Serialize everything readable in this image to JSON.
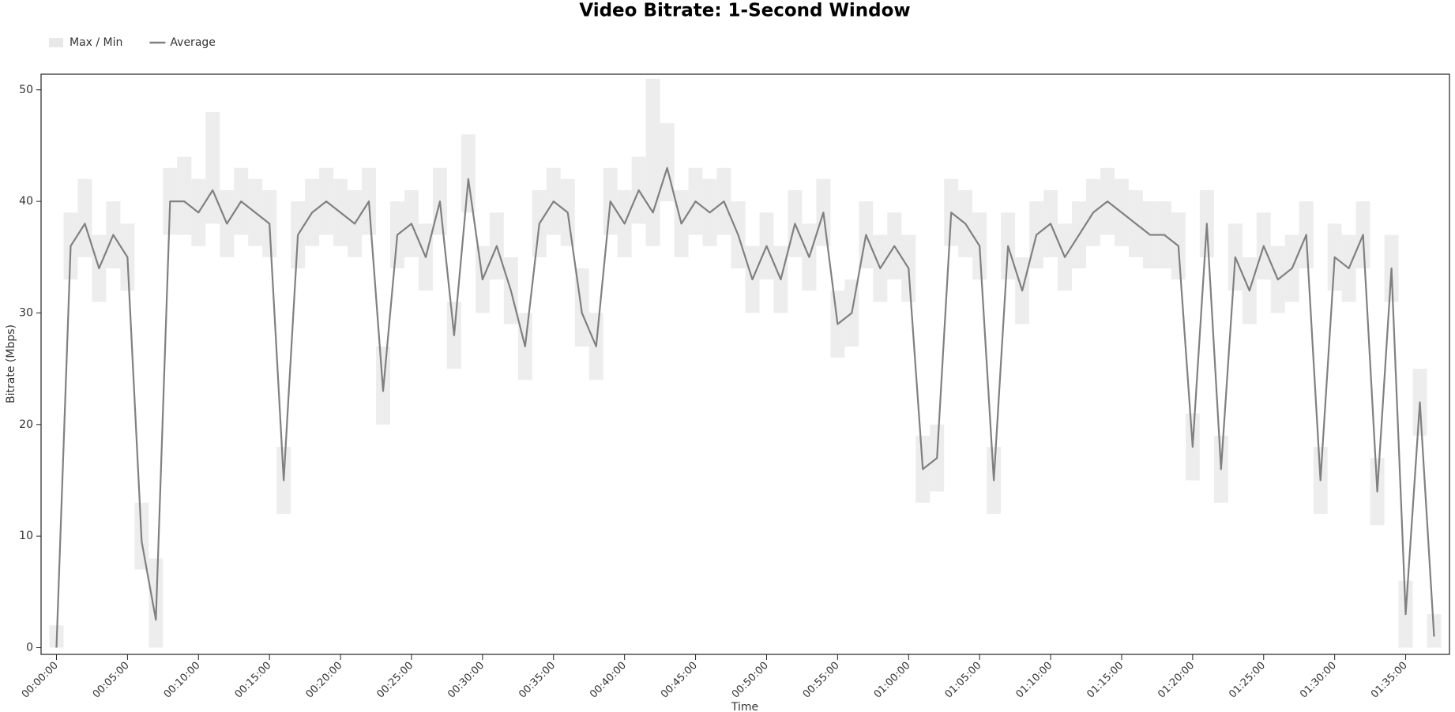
{
  "chart_data": {
    "type": "line",
    "title": "Video Bitrate: 1-Second Window",
    "x_label": "Time",
    "y_label": "Bitrate (Mbps)",
    "x": [
      0,
      60,
      120,
      180,
      240,
      300,
      360,
      420,
      480,
      540,
      600,
      660,
      720,
      780,
      840,
      900,
      960,
      1020,
      1080,
      1140,
      1200,
      1260,
      1320,
      1380,
      1440,
      1500,
      1560,
      1620,
      1680,
      1740,
      1800,
      1860,
      1920,
      1980,
      2040,
      2100,
      2160,
      2220,
      2280,
      2340,
      2400,
      2460,
      2520,
      2580,
      2640,
      2700,
      2760,
      2820,
      2880,
      2940,
      3000,
      3060,
      3120,
      3180,
      3240,
      3300,
      3360,
      3420,
      3480,
      3540,
      3600,
      3660,
      3720,
      3780,
      3840,
      3900,
      3960,
      4020,
      4080,
      4140,
      4200,
      4260,
      4320,
      4380,
      4440,
      4500,
      4560,
      4620,
      4680,
      4740,
      4800,
      4860,
      4920,
      4980,
      5040,
      5100,
      5160,
      5220,
      5280,
      5340,
      5400,
      5460,
      5520,
      5580,
      5640,
      5700,
      5760,
      5820
    ],
    "series": [
      {
        "name": "Max / Min",
        "type": "band",
        "color": "#e8e8e8",
        "upper": [
          2,
          39,
          42,
          37,
          40,
          38,
          13,
          8,
          43,
          44,
          42,
          48,
          41,
          43,
          42,
          41,
          18,
          40,
          42,
          43,
          42,
          41,
          43,
          27,
          40,
          41,
          38,
          43,
          31,
          46,
          36,
          39,
          35,
          30,
          41,
          43,
          42,
          34,
          30,
          43,
          41,
          44,
          51,
          47,
          41,
          43,
          42,
          43,
          40,
          36,
          39,
          36,
          41,
          38,
          42,
          32,
          33,
          40,
          37,
          39,
          37,
          19,
          20,
          42,
          41,
          39,
          18,
          39,
          35,
          40,
          41,
          38,
          40,
          42,
          43,
          42,
          41,
          40,
          40,
          39,
          21,
          41,
          19,
          38,
          35,
          39,
          36,
          37,
          40,
          18,
          38,
          37,
          40,
          17,
          37,
          6,
          25,
          3
        ],
        "lower": [
          0,
          33,
          35,
          31,
          34,
          32,
          7,
          0,
          37,
          37,
          36,
          38,
          35,
          37,
          36,
          35,
          12,
          34,
          36,
          37,
          36,
          35,
          37,
          20,
          34,
          35,
          32,
          37,
          25,
          39,
          30,
          33,
          29,
          24,
          35,
          37,
          36,
          27,
          24,
          37,
          35,
          38,
          36,
          40,
          35,
          37,
          36,
          37,
          34,
          30,
          33,
          30,
          35,
          32,
          36,
          26,
          27,
          34,
          31,
          33,
          31,
          13,
          14,
          36,
          35,
          33,
          12,
          33,
          29,
          34,
          35,
          32,
          34,
          36,
          37,
          36,
          35,
          34,
          34,
          33,
          15,
          35,
          13,
          32,
          29,
          33,
          30,
          31,
          34,
          12,
          32,
          31,
          34,
          11,
          31,
          0,
          19,
          0
        ]
      },
      {
        "name": "Average",
        "color": "#808080",
        "values": [
          0,
          36,
          38,
          34,
          37,
          35,
          9.5,
          2.5,
          40,
          40,
          39,
          41,
          38,
          40,
          39,
          38,
          15,
          37,
          39,
          40,
          39,
          38,
          40,
          23,
          37,
          38,
          35,
          40,
          28,
          42,
          33,
          36,
          32,
          27,
          38,
          40,
          39,
          30,
          27,
          40,
          38,
          41,
          39,
          43,
          38,
          40,
          39,
          40,
          37,
          33,
          36,
          33,
          38,
          35,
          39,
          29,
          30,
          37,
          34,
          36,
          34,
          16,
          17,
          39,
          38,
          36,
          15,
          36,
          32,
          37,
          38,
          35,
          37,
          39,
          40,
          39,
          38,
          37,
          37,
          36,
          18,
          38,
          16,
          35,
          32,
          36,
          33,
          34,
          37,
          15,
          35,
          34,
          37,
          14,
          34,
          3,
          22,
          1
        ]
      }
    ],
    "xlim": [
      -65,
      5885
    ],
    "ylim": [
      -0.6,
      51.4
    ],
    "xticks": [
      {
        "value": 0,
        "label": "00:00:00"
      },
      {
        "value": 300,
        "label": "00:05:00"
      },
      {
        "value": 600,
        "label": "00:10:00"
      },
      {
        "value": 900,
        "label": "00:15:00"
      },
      {
        "value": 1200,
        "label": "00:20:00"
      },
      {
        "value": 1500,
        "label": "00:25:00"
      },
      {
        "value": 1800,
        "label": "00:30:00"
      },
      {
        "value": 2100,
        "label": "00:35:00"
      },
      {
        "value": 2400,
        "label": "00:40:00"
      },
      {
        "value": 2700,
        "label": "00:45:00"
      },
      {
        "value": 3000,
        "label": "00:50:00"
      },
      {
        "value": 3300,
        "label": "00:55:00"
      },
      {
        "value": 3600,
        "label": "01:00:00"
      },
      {
        "value": 3900,
        "label": "01:05:00"
      },
      {
        "value": 4200,
        "label": "01:10:00"
      },
      {
        "value": 4500,
        "label": "01:15:00"
      },
      {
        "value": 4800,
        "label": "01:20:00"
      },
      {
        "value": 5100,
        "label": "01:25:00"
      },
      {
        "value": 5400,
        "label": "01:30:00"
      },
      {
        "value": 5700,
        "label": "01:35:00"
      }
    ],
    "yticks": [
      0,
      10,
      20,
      30,
      40,
      50
    ],
    "grid": false,
    "legend": "top-left"
  }
}
